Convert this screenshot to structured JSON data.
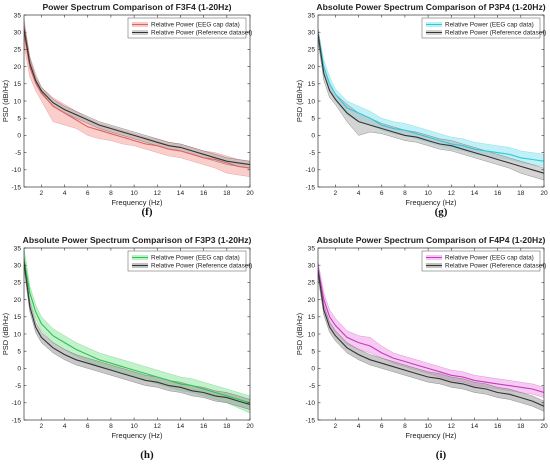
{
  "chart_data": [
    {
      "type": "line",
      "id": "f",
      "title": "Power Spectrum Comparison of F3F4 (1-20Hz)",
      "caption": "(f)",
      "xlabel": "Frequency (Hz)",
      "ylabel": "PSD (dB/Hz)",
      "xlim": [
        0.5,
        20
      ],
      "ylim": [
        -15,
        35
      ],
      "xticks": [
        "2",
        "4",
        "6",
        "8",
        "10",
        "12",
        "14",
        "16",
        "18",
        "20"
      ],
      "yticks": [
        "-15",
        "-10",
        "-5",
        "0",
        "5",
        "10",
        "15",
        "20",
        "25",
        "30",
        "35"
      ],
      "legend_position": "top-right",
      "grid": false,
      "x": [
        0.5,
        1,
        1.5,
        2,
        3,
        4,
        5,
        6,
        7,
        8,
        9,
        10,
        11,
        12,
        13,
        14,
        15,
        16,
        17,
        18,
        19,
        20
      ],
      "series": [
        {
          "name": "Relative Power (EEG cap data)",
          "color": "#e06060",
          "fill": "#f4a6a0",
          "values": [
            30,
            20,
            15.5,
            12.5,
            8.5,
            6.5,
            4.5,
            2.5,
            1.5,
            0.5,
            -0.5,
            -1.5,
            -2.5,
            -3,
            -4,
            -4.5,
            -5.5,
            -6.5,
            -7,
            -8,
            -9,
            -9.5
          ],
          "lower": [
            26,
            17,
            13,
            10,
            4,
            3,
            2,
            0,
            -1,
            -1.5,
            -2.5,
            -3,
            -4,
            -5,
            -6,
            -6.5,
            -7.5,
            -8.5,
            -9.5,
            -11,
            -11.5,
            -12
          ],
          "upper": [
            34,
            23,
            18,
            14,
            11,
            9,
            7,
            5,
            3.5,
            2.5,
            1.5,
            0.5,
            -0.5,
            -1,
            -2,
            -2.5,
            -3.5,
            -4.5,
            -5,
            -6,
            -7,
            -7.5
          ]
        },
        {
          "name": "Relative Power (Reference dataset)",
          "color": "#333333",
          "fill": "#b0b0b0",
          "values": [
            31,
            21,
            16,
            13,
            9.5,
            7.5,
            6,
            4.5,
            3,
            2,
            1,
            0,
            -1,
            -2,
            -3,
            -3.5,
            -4.5,
            -5.5,
            -6.5,
            -7.5,
            -8,
            -8.5
          ],
          "lower": [
            29,
            19.5,
            15,
            12,
            8.5,
            6.5,
            5,
            3.5,
            2,
            1,
            0,
            -1,
            -2,
            -3,
            -4,
            -4.5,
            -5.5,
            -6.5,
            -7.5,
            -8.5,
            -9,
            -9.5
          ],
          "upper": [
            32.5,
            22.5,
            17,
            14,
            10.5,
            8.5,
            7,
            5.5,
            4,
            3,
            2,
            1,
            0,
            -1,
            -2,
            -2.5,
            -3.5,
            -4.5,
            -5.5,
            -6.5,
            -7,
            -7.5
          ]
        }
      ]
    },
    {
      "type": "line",
      "id": "g",
      "title": "Absolute Power Spectrum Comparison of P3P4 (1-20Hz)",
      "caption": "(g)",
      "xlabel": "Frequency (Hz)",
      "ylabel": "PSD (dB/Hz)",
      "xlim": [
        0.5,
        20
      ],
      "ylim": [
        -15,
        35
      ],
      "xticks": [
        "2",
        "4",
        "6",
        "8",
        "10",
        "12",
        "14",
        "16",
        "18",
        "20"
      ],
      "yticks": [
        "-15",
        "-10",
        "-5",
        "0",
        "5",
        "10",
        "15",
        "20",
        "25",
        "30",
        "35"
      ],
      "legend_position": "top-right",
      "grid": false,
      "x": [
        0.5,
        1,
        1.5,
        2,
        3,
        4,
        5,
        6,
        7,
        8,
        9,
        10,
        11,
        12,
        13,
        14,
        15,
        16,
        17,
        18,
        19,
        20
      ],
      "series": [
        {
          "name": "Relative Power (EEG cap data)",
          "color": "#30c8d8",
          "fill": "#8ee6ee",
          "values": [
            29,
            20,
            15,
            12,
            8,
            6.5,
            5,
            3,
            2,
            1.5,
            0.5,
            -0.5,
            -1.5,
            -2.5,
            -3,
            -4,
            -4.5,
            -5,
            -5.5,
            -6.5,
            -7,
            -7.5
          ],
          "lower": [
            27,
            18,
            13,
            10,
            6,
            4,
            3,
            1.5,
            0.5,
            0,
            -1,
            -2,
            -3,
            -4,
            -4.5,
            -5.5,
            -6,
            -6.5,
            -7,
            -8,
            -8.5,
            -9
          ],
          "upper": [
            31,
            22,
            17,
            13.5,
            10,
            8.5,
            7,
            5,
            4,
            3.5,
            2.5,
            1.5,
            0.5,
            -0.5,
            -1,
            -2,
            -2.5,
            -3,
            -3.5,
            -4.5,
            -5,
            -5.5
          ]
        },
        {
          "name": "Relative Power (Reference dataset)",
          "color": "#333333",
          "fill": "#b0b0b0",
          "values": [
            29.5,
            18,
            13,
            10.5,
            6.5,
            4,
            3,
            2,
            1,
            0,
            -0.5,
            -1.5,
            -2.5,
            -3,
            -4,
            -5,
            -6,
            -7,
            -8,
            -9,
            -10,
            -11
          ],
          "lower": [
            27.5,
            16,
            11,
            9,
            4,
            0,
            1,
            0.5,
            -0.5,
            -1.5,
            -2,
            -3,
            -4,
            -4.5,
            -5.5,
            -6.5,
            -7.5,
            -8.5,
            -9.5,
            -11,
            -12,
            -13
          ],
          "upper": [
            31,
            20,
            15,
            12,
            9,
            6.5,
            5,
            3.5,
            2.5,
            1.5,
            1,
            0,
            -1,
            -1.5,
            -2.5,
            -3.5,
            -4.5,
            -5.5,
            -6.5,
            -7.5,
            -8.5,
            -9.5
          ]
        }
      ]
    },
    {
      "type": "line",
      "id": "h",
      "title": "Absolute Power Spectrum Comparison of F3P3 (1-20Hz)",
      "caption": "(h)",
      "xlabel": "Frequency (Hz)",
      "ylabel": "PSD (dB/Hz)",
      "xlim": [
        0.5,
        20
      ],
      "ylim": [
        -15,
        35
      ],
      "xticks": [
        "2",
        "4",
        "6",
        "8",
        "10",
        "12",
        "14",
        "16",
        "18",
        "20"
      ],
      "yticks": [
        "-15",
        "-10",
        "-5",
        "0",
        "5",
        "10",
        "15",
        "20",
        "25",
        "30",
        "35"
      ],
      "legend_position": "top-right",
      "grid": false,
      "x": [
        0.5,
        1,
        1.5,
        2,
        3,
        4,
        5,
        6,
        7,
        8,
        9,
        10,
        11,
        12,
        13,
        14,
        15,
        16,
        17,
        18,
        19,
        20
      ],
      "series": [
        {
          "name": "Relative Power (EEG cap data)",
          "color": "#30c050",
          "fill": "#8fe8a0",
          "values": [
            32,
            22,
            16.5,
            13,
            9.5,
            7.5,
            5.5,
            4,
            2.5,
            1.5,
            0.5,
            -0.5,
            -1.5,
            -2.5,
            -3.5,
            -4.5,
            -5,
            -6,
            -7,
            -8,
            -9,
            -10
          ],
          "lower": [
            30,
            20,
            14.5,
            11,
            7.5,
            5.5,
            3.5,
            2,
            0.5,
            -0.5,
            -1.5,
            -2.5,
            -3.5,
            -4.5,
            -5.5,
            -6.5,
            -7,
            -8,
            -9,
            -10,
            -11.5,
            -13
          ],
          "upper": [
            35,
            24,
            18.5,
            15,
            11.5,
            9.5,
            7.5,
            6,
            4.5,
            3.5,
            2.5,
            1.5,
            0.5,
            -0.5,
            -1.5,
            -2.5,
            -3,
            -4,
            -5,
            -6,
            -7,
            -8
          ]
        },
        {
          "name": "Relative Power (Reference dataset)",
          "color": "#333333",
          "fill": "#9a9a9a",
          "values": [
            31,
            18,
            12,
            9,
            6,
            4,
            2.5,
            1.5,
            0.5,
            -0.5,
            -1.5,
            -2.5,
            -3.5,
            -4,
            -5,
            -5.5,
            -6.5,
            -7,
            -8,
            -8.5,
            -9.5,
            -10.5
          ],
          "lower": [
            29,
            16.5,
            10.5,
            7.5,
            4.5,
            2.5,
            1,
            0,
            -1,
            -2,
            -3,
            -4,
            -5,
            -5.5,
            -6.5,
            -7,
            -8,
            -8.5,
            -9.5,
            -10,
            -11,
            -12
          ],
          "upper": [
            33,
            19.5,
            13.5,
            10.5,
            7.5,
            5.5,
            4,
            3,
            2,
            1,
            0,
            -1,
            -2,
            -2.5,
            -3.5,
            -4,
            -5,
            -5.5,
            -6.5,
            -7,
            -8,
            -9
          ]
        }
      ]
    },
    {
      "type": "line",
      "id": "i",
      "title": "Absolute Power Spectrum Comparison of F4P4 (1-20Hz)",
      "caption": "(i)",
      "xlabel": "Frequency (Hz)",
      "ylabel": "PSD (dB/Hz)",
      "xlim": [
        0.5,
        20
      ],
      "ylim": [
        -15,
        35
      ],
      "xticks": [
        "2",
        "4",
        "6",
        "8",
        "10",
        "12",
        "14",
        "16",
        "18",
        "20"
      ],
      "yticks": [
        "-15",
        "-10",
        "-5",
        "0",
        "5",
        "10",
        "15",
        "20",
        "25",
        "30",
        "35"
      ],
      "legend_position": "top-right",
      "grid": false,
      "x": [
        0.5,
        1,
        1.5,
        2,
        3,
        4,
        5,
        6,
        7,
        8,
        9,
        10,
        11,
        12,
        13,
        14,
        15,
        16,
        17,
        18,
        19,
        20
      ],
      "series": [
        {
          "name": "Relative Power (EEG cap data)",
          "color": "#c838c0",
          "fill": "#eea0e8",
          "values": [
            29,
            20,
            15,
            12.5,
            9,
            7.5,
            6.5,
            4.5,
            3,
            2,
            1,
            0,
            -1,
            -2,
            -2.5,
            -3.5,
            -4,
            -4.5,
            -5,
            -5.5,
            -6,
            -7
          ],
          "lower": [
            27,
            18,
            13,
            10.5,
            7,
            5.5,
            4.5,
            3,
            1.5,
            0.5,
            -0.5,
            -1.5,
            -2.5,
            -3.5,
            -4,
            -5,
            -5.5,
            -6,
            -6.5,
            -7,
            -7.5,
            -8.5
          ],
          "upper": [
            31,
            22,
            17,
            14.5,
            11,
            9.5,
            9,
            6.5,
            4.5,
            3.5,
            2.5,
            1.5,
            0.5,
            -0.5,
            -1,
            -2,
            -2.5,
            -3,
            -3.5,
            -4,
            -4.5,
            -5.5
          ]
        },
        {
          "name": "Relative Power (Reference dataset)",
          "color": "#333333",
          "fill": "#9a9a9a",
          "values": [
            28.5,
            17,
            12,
            9.5,
            6,
            4,
            2.5,
            1.5,
            0.5,
            -0.5,
            -1.5,
            -2.5,
            -3,
            -4,
            -4.5,
            -5.5,
            -6,
            -7,
            -7.5,
            -8.5,
            -9.5,
            -11
          ],
          "lower": [
            26.5,
            15.5,
            10.5,
            8,
            4.5,
            2.5,
            1,
            0,
            -1,
            -2,
            -3,
            -4,
            -4.5,
            -5.5,
            -6,
            -7,
            -7.5,
            -8.5,
            -9,
            -10,
            -11,
            -12.5
          ],
          "upper": [
            30.5,
            18.5,
            13.5,
            11,
            7.5,
            5.5,
            4,
            3,
            2,
            1,
            0,
            -1,
            -1.5,
            -2.5,
            -3,
            -4,
            -4.5,
            -5.5,
            -6,
            -7,
            -8,
            -9.5
          ]
        }
      ]
    }
  ]
}
